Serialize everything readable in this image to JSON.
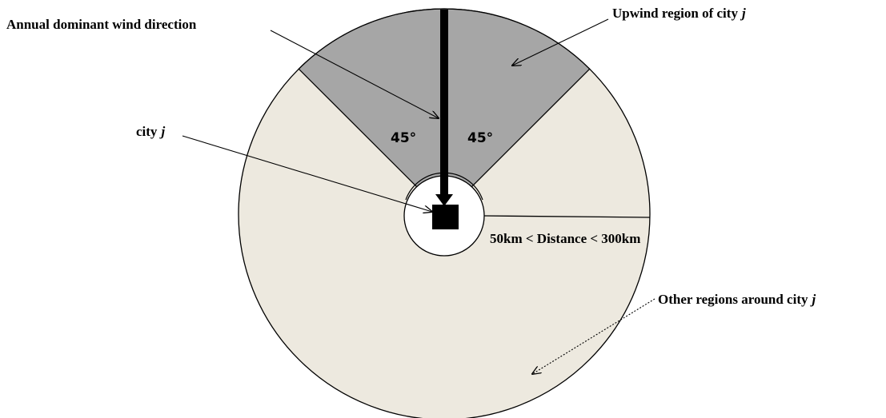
{
  "annotations": {
    "wind_direction": "Annual dominant wind direction",
    "upwind": {
      "text": "Upwind region of city",
      "variable": "j"
    },
    "city": {
      "text": "city",
      "variable": "j"
    },
    "angle_left": "45°",
    "angle_right": "45°",
    "distance": "50km < Distance < 300km",
    "other": {
      "text": "Other regions around city",
      "variable": "j"
    }
  }
}
